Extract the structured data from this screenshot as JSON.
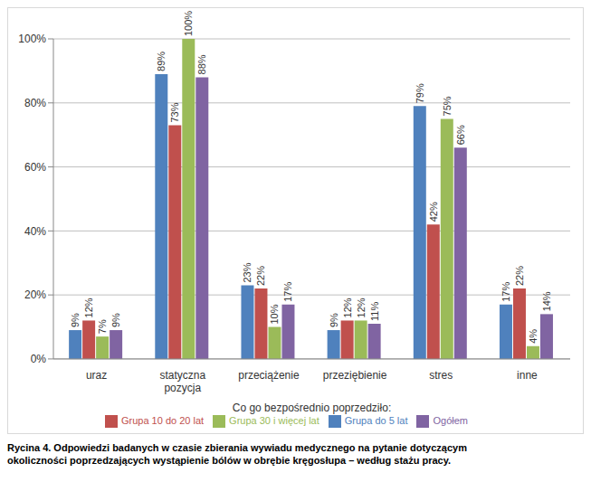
{
  "chart_data": {
    "type": "bar",
    "x_label": "Co go bezpośrednio poprzedziło:",
    "caption": [
      "Rycina 4. Odpowiedzi badanych w czasie zbierania wywiadu medycznego na pytanie dotyczącym",
      "okoliczności poprzedzających wystąpienie bólów w obrębie kręgosłupa – według stażu pracy."
    ],
    "categories": [
      "uraz",
      "statyczna pozycja",
      "przeciążenie",
      "przeziębienie",
      "stres",
      "inne"
    ],
    "series": [
      {
        "name": "Grupa do 5 lat",
        "color": "#4f81bd",
        "values": [
          9,
          89,
          23,
          9,
          79,
          17
        ],
        "value_labels": [
          "9%",
          "89%",
          "23%",
          "9%",
          "79%",
          "17%"
        ]
      },
      {
        "name": "Grupa 10 do 20 lat",
        "color": "#c0504d",
        "values": [
          12,
          73,
          22,
          12,
          42,
          22
        ],
        "value_labels": [
          "12%",
          "73%",
          "22%",
          "12%",
          "42%",
          "22%"
        ]
      },
      {
        "name": "Grupa 30 i więcej lat",
        "color": "#9bbb59",
        "values": [
          7,
          100,
          10,
          12,
          75,
          4
        ],
        "value_labels": [
          "7%",
          "100%",
          "10%",
          "12%",
          "75%",
          "4%"
        ]
      },
      {
        "name": "Ogółem",
        "color": "#8064a2",
        "values": [
          9,
          88,
          17,
          11,
          66,
          14
        ],
        "value_labels": [
          "9%",
          "88%",
          "17%",
          "11%",
          "66%",
          "14%"
        ]
      }
    ],
    "ylim": [
      0,
      100
    ],
    "yticks": [
      {
        "value": 0,
        "label": "0%"
      },
      {
        "value": 20,
        "label": "20%"
      },
      {
        "value": 40,
        "label": "40%"
      },
      {
        "value": 60,
        "label": "60%"
      },
      {
        "value": 80,
        "label": "80%"
      },
      {
        "value": 100,
        "label": "100%"
      }
    ],
    "grid": true,
    "data_labels": true,
    "legend": "bottom"
  }
}
